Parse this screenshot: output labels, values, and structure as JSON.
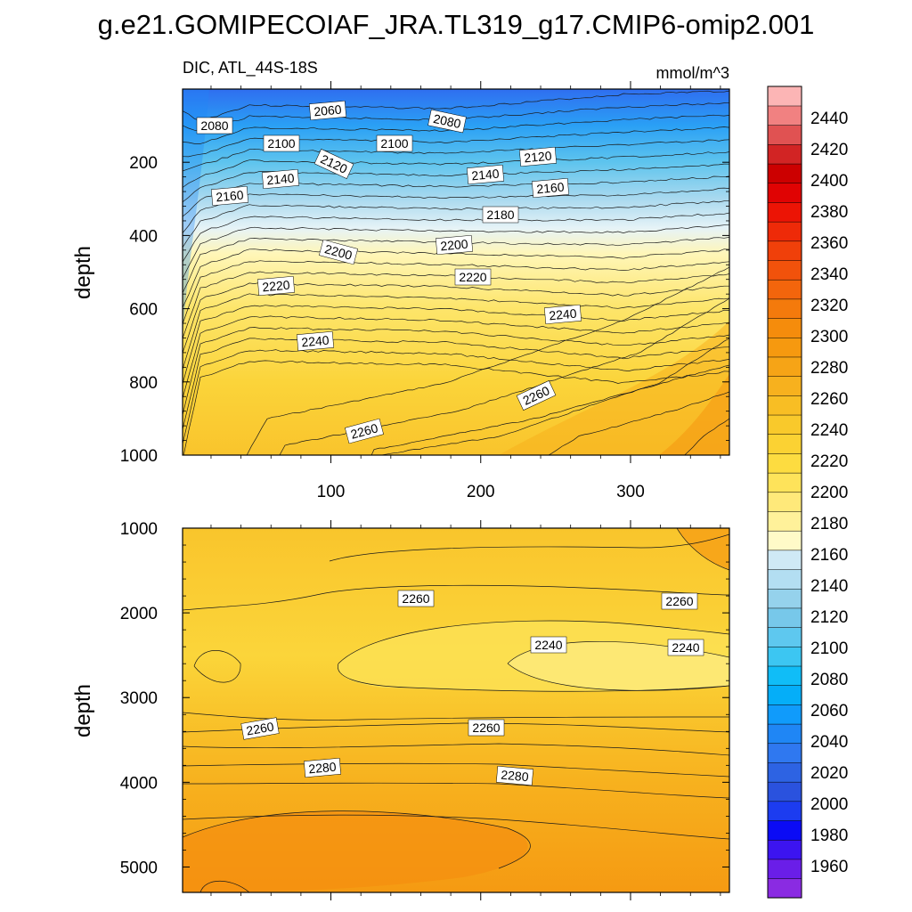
{
  "chart_data": {
    "type": "heatmap",
    "title": "g.e21.GOMIPECOIAF_JRA.TL319_g17.CMIP6-omip2.001",
    "subtitle_left": "DIC, ATL_44S-18S",
    "subtitle_right": "mmol/m^3",
    "panels": [
      {
        "name": "upper",
        "ylabel": "depth",
        "xlim": [
          1,
          366
        ],
        "ylim": [
          0,
          1000
        ],
        "x_ticks": [
          "100",
          "200",
          "300"
        ],
        "y_ticks": [
          "200",
          "400",
          "600",
          "800",
          "1000"
        ],
        "contour_labels": [
          "2060",
          "2080",
          "2080",
          "2100",
          "2100",
          "2120",
          "2120",
          "2140",
          "2140",
          "2160",
          "2160",
          "2180",
          "2200",
          "2200",
          "2220",
          "2220",
          "2240",
          "2240",
          "2260",
          "2260"
        ]
      },
      {
        "name": "lower",
        "ylabel": "depth",
        "xlim": [
          1,
          366
        ],
        "ylim": [
          1000,
          5300
        ],
        "y_ticks": [
          "1000",
          "2000",
          "3000",
          "4000",
          "5000"
        ],
        "contour_labels": [
          "2260",
          "2260",
          "2240",
          "2240",
          "2260",
          "2260",
          "2280",
          "2280"
        ]
      }
    ],
    "colorbar": {
      "levels": [
        "1960",
        "1980",
        "2000",
        "2020",
        "2040",
        "2060",
        "2080",
        "2100",
        "2120",
        "2140",
        "2160",
        "2180",
        "2200",
        "2220",
        "2240",
        "2260",
        "2280",
        "2300",
        "2320",
        "2340",
        "2360",
        "2380",
        "2400",
        "2420",
        "2440"
      ],
      "colors": [
        "#8a2be2",
        "#6a1ee8",
        "#3c14f0",
        "#0b0bf5",
        "#1c3cf0",
        "#2a52de",
        "#2d63e3",
        "#2f78f0",
        "#1f86f5",
        "#109bfb",
        "#05aef8",
        "#10bdf7",
        "#3cc6f2",
        "#5ec8ef",
        "#77c8ea",
        "#95d2ec",
        "#b3def2",
        "#cfe9f5",
        "#fffac8",
        "#fff19a",
        "#ffe97a",
        "#fee35a",
        "#fddc40",
        "#fbd233",
        "#f9c92b",
        "#f8be24",
        "#f7b11e",
        "#f6a416",
        "#f6990f",
        "#f58c0c",
        "#f47a0c",
        "#f3650c",
        "#f1520b",
        "#f0400a",
        "#ee2a08",
        "#ec1405",
        "#e00303",
        "#cc0000",
        "#d22424",
        "#e05252",
        "#f18181",
        "#fcb5b5"
      ]
    }
  }
}
